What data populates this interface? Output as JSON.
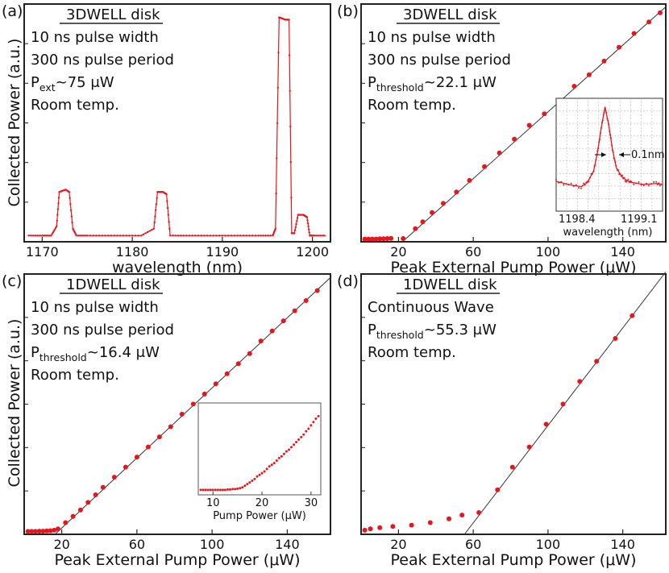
{
  "figure": {
    "ylabel_common": "Collected Power (a.u.)"
  },
  "chart_data": [
    {
      "id": "a",
      "type": "line",
      "panel_label": "(a)",
      "title": "3DWELL disk",
      "annotations": {
        "line1": "10 ns pulse width",
        "line2": "300 ns pulse period",
        "p_main": "P",
        "p_sub": "ext",
        "p_rest": "~75 μW",
        "line4": "Room temp."
      },
      "xlabel": "wavelength (nm)",
      "ylabel": "Collected Power (a.u.)",
      "xlim": [
        1168,
        1202
      ],
      "ylim": [
        0,
        1
      ],
      "xticks": [
        1170,
        1180,
        1190,
        1200
      ],
      "series": [
        {
          "name": "spectrum",
          "x": [
            1168.5,
            1170.0,
            1171.0,
            1171.6,
            1171.9,
            1172.6,
            1173.0,
            1173.4,
            1173.8,
            1175,
            1177,
            1179,
            1181,
            1182.4,
            1182.8,
            1183.4,
            1183.8,
            1184.2,
            1186,
            1188,
            1190,
            1192,
            1194,
            1195.6,
            1195.9,
            1196.3,
            1197.0,
            1197.4,
            1197.7,
            1198.0,
            1198.4,
            1199.0,
            1199.4,
            1199.7,
            1200.2,
            1201.5
          ],
          "y": [
            0.02,
            0.02,
            0.02,
            0.06,
            0.21,
            0.22,
            0.21,
            0.05,
            0.02,
            0.02,
            0.02,
            0.02,
            0.02,
            0.05,
            0.21,
            0.21,
            0.2,
            0.02,
            0.02,
            0.02,
            0.02,
            0.02,
            0.02,
            0.02,
            0.05,
            0.97,
            0.96,
            0.96,
            0.03,
            0.03,
            0.11,
            0.11,
            0.1,
            0.02,
            0.02,
            0.02
          ]
        }
      ]
    },
    {
      "id": "b",
      "type": "scatter",
      "panel_label": "(b)",
      "title": "3DWELL disk",
      "annotations": {
        "line1": "10 ns pulse width",
        "line2": "300 ns pulse period",
        "p_main": "P",
        "p_sub": "threshold",
        "p_rest": "~22.1 μW",
        "line4": "Room temp."
      },
      "xlabel": "Peak External Pump Power (μW)",
      "xlim": [
        0,
        163
      ],
      "ylim": [
        0,
        1
      ],
      "xticks": [
        20,
        60,
        100,
        140
      ],
      "threshold": 22.1,
      "fit_slope_per_uW": 0.00721,
      "series": [
        {
          "name": "data",
          "x": [
            2,
            4,
            6,
            8,
            10,
            12,
            14,
            16,
            22.5,
            29,
            33,
            38,
            44,
            51,
            58,
            66,
            74,
            82,
            90,
            98,
            106,
            114,
            122,
            130,
            138,
            146,
            154,
            160
          ],
          "y": [
            0.005,
            0.005,
            0.005,
            0.005,
            0.006,
            0.006,
            0.007,
            0.008,
            0.007,
            0.05,
            0.08,
            0.12,
            0.16,
            0.21,
            0.26,
            0.32,
            0.38,
            0.44,
            0.5,
            0.55,
            0.61,
            0.67,
            0.72,
            0.78,
            0.84,
            0.9,
            0.95,
            0.99
          ]
        }
      ],
      "inset": {
        "type": "line",
        "xlabel": "wavelength (nm)",
        "xtick_labels": [
          "1198.4",
          "1199.1"
        ],
        "annotation": "0.1nm",
        "xlim": [
          1198.3,
          1199.15
        ],
        "x": [
          1198.3,
          1198.4,
          1198.5,
          1198.55,
          1198.6,
          1198.63,
          1198.66,
          1198.69,
          1198.72,
          1198.75,
          1198.78,
          1198.82,
          1198.86,
          1198.9,
          1199.0,
          1199.1,
          1199.15
        ],
        "y": [
          0.25,
          0.22,
          0.2,
          0.24,
          0.35,
          0.52,
          0.75,
          0.95,
          0.78,
          0.55,
          0.38,
          0.3,
          0.26,
          0.24,
          0.22,
          0.23,
          0.22
        ]
      }
    },
    {
      "id": "c",
      "type": "scatter",
      "panel_label": "(c)",
      "title": "1DWELL disk",
      "annotations": {
        "line1": "10 ns pulse width",
        "line2": "300 ns pulse period",
        "p_main": "P",
        "p_sub": "threshold",
        "p_rest": "~16.4 μW",
        "line4": "Room temp."
      },
      "xlabel": "Peak External Pump Power (μW)",
      "ylabel": "Collected Power (a.u.)",
      "xlim": [
        0,
        163
      ],
      "ylim": [
        0,
        1
      ],
      "xticks": [
        20,
        60,
        100,
        140
      ],
      "threshold": 16.4,
      "fit_slope_per_uW": 0.0069,
      "series": [
        {
          "name": "data",
          "x": [
            2,
            4,
            6,
            8,
            10,
            12,
            14,
            16,
            18,
            22,
            26,
            30,
            34,
            38,
            42,
            48,
            54,
            60,
            66,
            72,
            78,
            84,
            90,
            96,
            102,
            108,
            114,
            120,
            126,
            132,
            138,
            144,
            150,
            156
          ],
          "y": [
            0.005,
            0.005,
            0.005,
            0.006,
            0.006,
            0.007,
            0.008,
            0.01,
            0.015,
            0.04,
            0.065,
            0.09,
            0.12,
            0.15,
            0.18,
            0.22,
            0.26,
            0.3,
            0.34,
            0.38,
            0.42,
            0.47,
            0.51,
            0.55,
            0.59,
            0.63,
            0.67,
            0.71,
            0.76,
            0.8,
            0.84,
            0.88,
            0.92,
            0.96
          ]
        }
      ],
      "inset": {
        "type": "scatter",
        "xlabel": "Pump Power (μW)",
        "xticks": [
          10,
          20,
          30
        ],
        "xlim": [
          7,
          32
        ],
        "x": [
          7.5,
          8,
          8.5,
          9,
          9.5,
          10,
          10.5,
          11,
          11.5,
          12,
          12.5,
          13,
          13.5,
          14,
          14.5,
          15,
          15.5,
          16,
          16.5,
          17,
          17.5,
          18,
          18.5,
          19,
          19.5,
          20,
          20.5,
          21,
          21.5,
          22,
          22.5,
          23,
          23.5,
          24,
          24.5,
          25,
          25.5,
          26,
          26.5,
          27,
          27.5,
          28,
          28.5,
          29,
          29.5,
          30,
          30.5,
          31,
          31.5
        ],
        "y": [
          0.02,
          0.02,
          0.02,
          0.02,
          0.02,
          0.02,
          0.02,
          0.02,
          0.02,
          0.02,
          0.02,
          0.025,
          0.025,
          0.03,
          0.03,
          0.035,
          0.04,
          0.05,
          0.07,
          0.09,
          0.11,
          0.13,
          0.15,
          0.18,
          0.2,
          0.22,
          0.24,
          0.27,
          0.3,
          0.32,
          0.34,
          0.37,
          0.4,
          0.42,
          0.45,
          0.48,
          0.5,
          0.53,
          0.56,
          0.59,
          0.62,
          0.65,
          0.68,
          0.72,
          0.75,
          0.79,
          0.83,
          0.87,
          0.9
        ]
      }
    },
    {
      "id": "d",
      "type": "scatter",
      "panel_label": "(d)",
      "title": "1DWELL disk",
      "annotations": {
        "line1": "Continuous Wave",
        "p_main": "P",
        "p_sub": "threshold",
        "p_rest": "~55.3 μW",
        "line3": "Room temp."
      },
      "xlabel": "Peak External Pump Power (μW)",
      "xlim": [
        0,
        163
      ],
      "ylim": [
        0,
        1
      ],
      "xticks": [
        20,
        60,
        100,
        140
      ],
      "threshold": 55.3,
      "fit_slope_per_uW": 0.0096,
      "series": [
        {
          "name": "data",
          "x": [
            2,
            5,
            10,
            17,
            27,
            37,
            47,
            54,
            63,
            73,
            81,
            90,
            99,
            108,
            117,
            126,
            136,
            145
          ],
          "y": [
            0.01,
            0.015,
            0.02,
            0.025,
            0.03,
            0.04,
            0.055,
            0.07,
            0.08,
            0.17,
            0.26,
            0.34,
            0.43,
            0.51,
            0.6,
            0.68,
            0.77,
            0.86
          ]
        }
      ]
    }
  ]
}
